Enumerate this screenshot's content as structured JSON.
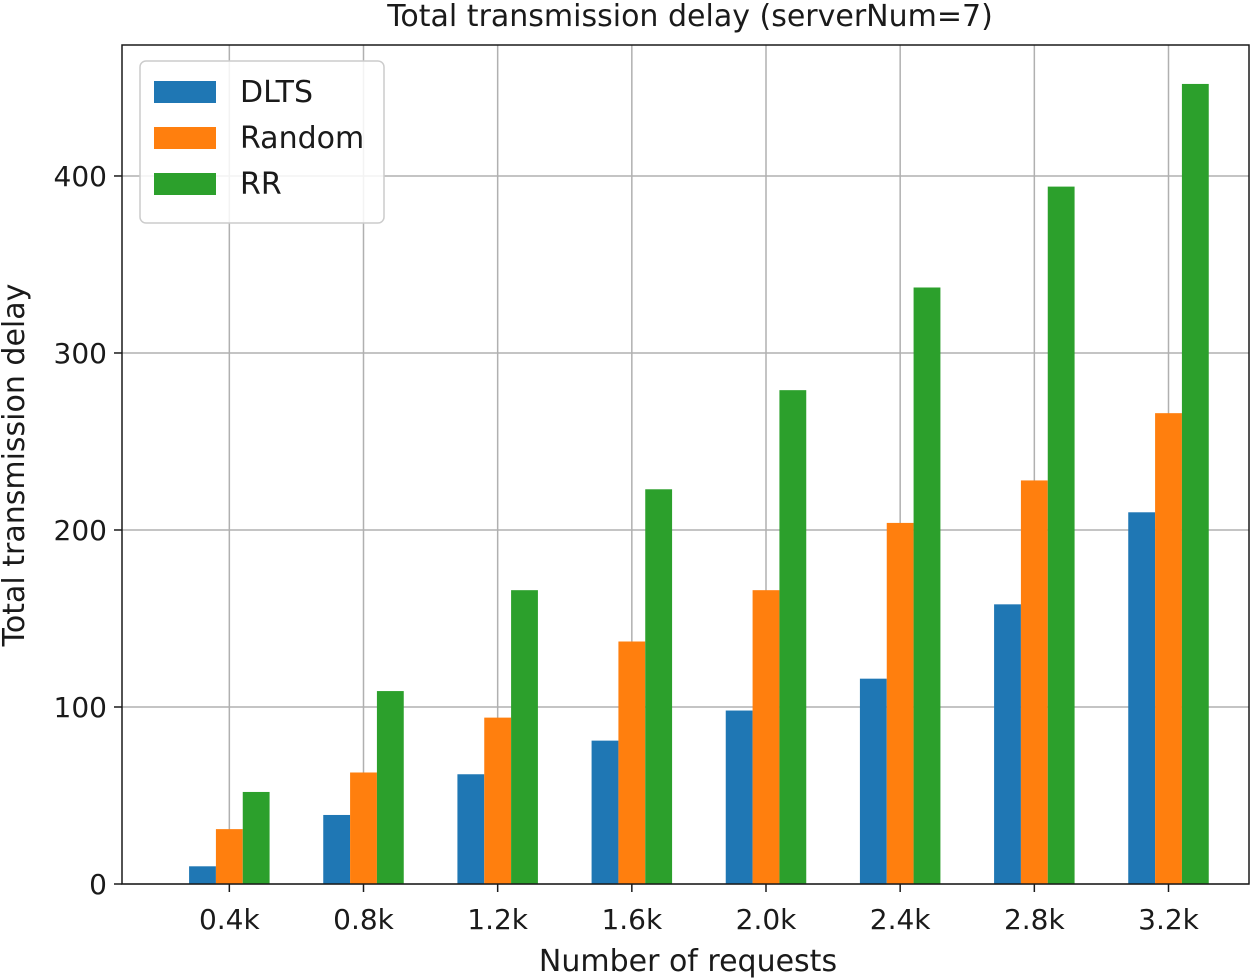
{
  "chart_data": {
    "type": "bar",
    "title": "Total transmission delay (serverNum=7)",
    "xlabel": "Number of requests",
    "ylabel": "Total transmission delay",
    "categories": [
      "0.4k",
      "0.8k",
      "1.2k",
      "1.6k",
      "2.0k",
      "2.4k",
      "2.8k",
      "3.2k"
    ],
    "series": [
      {
        "name": "DLTS",
        "color": "#1f77b4",
        "values": [
          10,
          39,
          62,
          81,
          98,
          116,
          158,
          210
        ]
      },
      {
        "name": "Random",
        "color": "#ff7f0e",
        "values": [
          31,
          63,
          94,
          137,
          166,
          204,
          228,
          266
        ]
      },
      {
        "name": "RR",
        "color": "#2ca02c",
        "values": [
          52,
          109,
          166,
          223,
          279,
          337,
          394,
          452
        ]
      }
    ],
    "ylim": [
      0,
      474
    ],
    "yticks": [
      0,
      100,
      200,
      300,
      400
    ],
    "grid": true,
    "legend_position": "top-left"
  }
}
